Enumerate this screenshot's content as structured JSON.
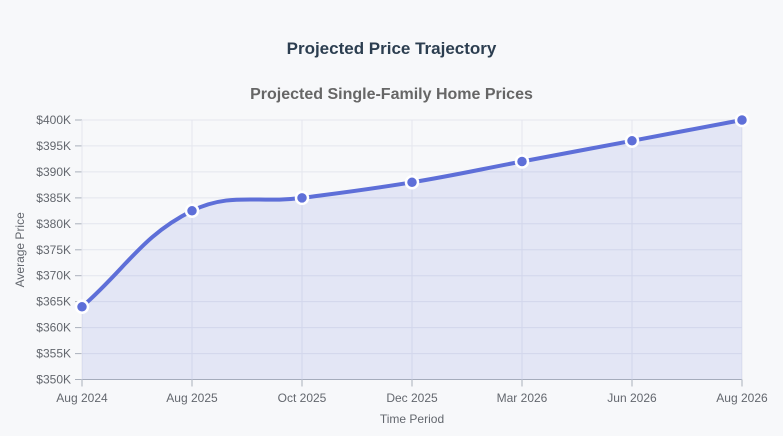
{
  "header": {
    "title": "Projected Price Trajectory"
  },
  "chart_data": {
    "type": "line",
    "title": "Projected Single-Family Home Prices",
    "xlabel": "Time Period",
    "ylabel": "Average Price",
    "categories": [
      "Aug 2024",
      "Aug 2025",
      "Oct 2025",
      "Dec 2025",
      "Mar 2026",
      "Jun 2026",
      "Aug 2026"
    ],
    "series": [
      {
        "name": "Projected Single-Family Home Prices",
        "values": [
          364000,
          382500,
          385000,
          388000,
          392000,
          396000,
          400000
        ]
      }
    ],
    "ylim": [
      350000,
      400000
    ],
    "ytick_step": 5000,
    "ytick_labels": [
      "$350K",
      "$355K",
      "$360K",
      "$365K",
      "$370K",
      "$375K",
      "$380K",
      "$385K",
      "$390K",
      "$395K",
      "$400K"
    ],
    "grid": true,
    "legend": "none",
    "smooth": true,
    "colors": {
      "line": "#5e6fd8",
      "area": "rgba(94, 111, 216, 0.13)",
      "point_fill": "#5e6fd8",
      "point_border": "#ffffff",
      "grid": "#e4e6ee",
      "axis": "#aab0bb",
      "tick_text": "#63676e",
      "title_text": "#2c3e50",
      "subtitle_text": "#666666",
      "background": "#f7f8fa"
    }
  }
}
